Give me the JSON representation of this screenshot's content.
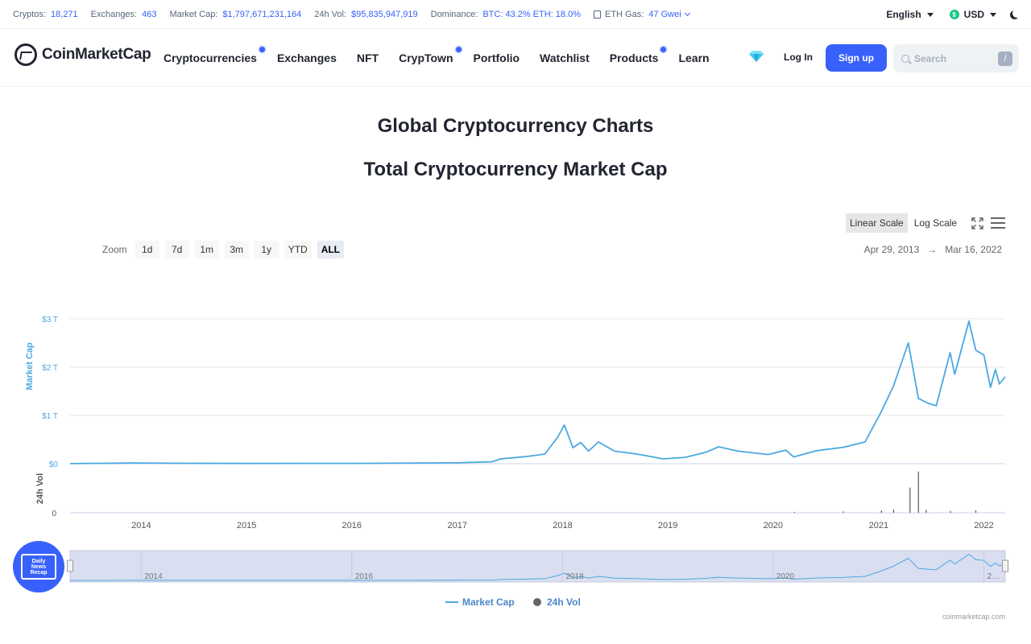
{
  "stats": {
    "cryptos_label": "Cryptos:",
    "cryptos": "18,271",
    "exchanges_label": "Exchanges:",
    "exchanges": "463",
    "marketcap_label": "Market Cap:",
    "marketcap": "$1,797,671,231,164",
    "vol_label": "24h Vol:",
    "vol": "$95,835,947,919",
    "dominance_label": "Dominance:",
    "dominance": "BTC: 43.2% ETH: 18.0%",
    "gas_label": "ETH Gas:",
    "gas": "47 Gwei",
    "language": "English",
    "currency": "USD"
  },
  "nav": {
    "logo": "CoinMarketCap",
    "items": [
      "Cryptocurrencies",
      "Exchanges",
      "NFT",
      "CrypTown",
      "Portfolio",
      "Watchlist",
      "Products",
      "Learn"
    ],
    "login": "Log In",
    "signup": "Sign up",
    "search_placeholder": "Search",
    "search_key": "/"
  },
  "page": {
    "title": "Global Cryptocurrency Charts",
    "subtitle": "Total Cryptocurrency Market Cap"
  },
  "controls": {
    "scales": [
      "Linear Scale",
      "Log Scale"
    ],
    "active_scale": "Linear Scale",
    "zoom_label": "Zoom",
    "zoom_buttons": [
      "1d",
      "7d",
      "1m",
      "3m",
      "1y",
      "YTD",
      "ALL"
    ],
    "active_zoom": "ALL",
    "range_from": "Apr 29, 2013",
    "range_arrow": "→",
    "range_to": "Mar 16, 2022"
  },
  "chart_data": {
    "type": "line",
    "ylabel": "Market Cap",
    "y2label": "24h Vol",
    "yticks": [
      "$0",
      "$1 T",
      "$2 T",
      "$3 T"
    ],
    "y2ticks": [
      "0"
    ],
    "ylim": [
      0,
      3
    ],
    "unit": "T",
    "xticks": [
      "2014",
      "2015",
      "2016",
      "2017",
      "2018",
      "2019",
      "2020",
      "2021",
      "2022"
    ],
    "navigator_ticks": [
      "2014",
      "2016",
      "2018",
      "2020",
      "2…"
    ],
    "legend": [
      "Market Cap",
      "24h Vol"
    ],
    "series": [
      {
        "name": "Market Cap",
        "color": "#4aa8e0",
        "points": [
          [
            "2013-04-29",
            0.002
          ],
          [
            "2013-12-01",
            0.013
          ],
          [
            "2014-06-01",
            0.009
          ],
          [
            "2015-01-01",
            0.005
          ],
          [
            "2016-01-01",
            0.007
          ],
          [
            "2017-01-01",
            0.018
          ],
          [
            "2017-05-01",
            0.04
          ],
          [
            "2017-06-01",
            0.1
          ],
          [
            "2017-09-01",
            0.15
          ],
          [
            "2017-11-01",
            0.2
          ],
          [
            "2017-12-15",
            0.55
          ],
          [
            "2018-01-07",
            0.8
          ],
          [
            "2018-02-06",
            0.33
          ],
          [
            "2018-03-05",
            0.44
          ],
          [
            "2018-04-01",
            0.26
          ],
          [
            "2018-05-05",
            0.45
          ],
          [
            "2018-06-30",
            0.26
          ],
          [
            "2018-09-15",
            0.2
          ],
          [
            "2018-11-20",
            0.13
          ],
          [
            "2018-12-15",
            0.1
          ],
          [
            "2019-03-01",
            0.13
          ],
          [
            "2019-05-15",
            0.24
          ],
          [
            "2019-06-26",
            0.35
          ],
          [
            "2019-09-01",
            0.26
          ],
          [
            "2019-12-15",
            0.19
          ],
          [
            "2020-02-14",
            0.28
          ],
          [
            "2020-03-12",
            0.14
          ],
          [
            "2020-06-01",
            0.27
          ],
          [
            "2020-09-01",
            0.34
          ],
          [
            "2020-11-15",
            0.45
          ],
          [
            "2021-01-08",
            1.05
          ],
          [
            "2021-02-21",
            1.6
          ],
          [
            "2021-04-14",
            2.5
          ],
          [
            "2021-05-19",
            1.35
          ],
          [
            "2021-06-22",
            1.25
          ],
          [
            "2021-07-20",
            1.2
          ],
          [
            "2021-09-06",
            2.3
          ],
          [
            "2021-09-22",
            1.85
          ],
          [
            "2021-11-10",
            2.95
          ],
          [
            "2021-12-04",
            2.35
          ],
          [
            "2022-01-01",
            2.25
          ],
          [
            "2022-01-24",
            1.58
          ],
          [
            "2022-02-10",
            1.95
          ],
          [
            "2022-02-24",
            1.65
          ],
          [
            "2022-03-16",
            1.8
          ]
        ]
      },
      {
        "name": "24h Vol",
        "color": "#555555",
        "bars": [
          [
            "2020-03-15",
            0.02
          ],
          [
            "2020-09-01",
            0.03
          ],
          [
            "2021-01-11",
            0.05
          ],
          [
            "2021-02-22",
            0.07
          ],
          [
            "2021-04-20",
            0.55
          ],
          [
            "2021-05-19",
            0.9
          ],
          [
            "2021-06-15",
            0.06
          ],
          [
            "2021-09-07",
            0.04
          ],
          [
            "2021-12-04",
            0.05
          ]
        ]
      }
    ]
  },
  "floating": {
    "badge_line1": "Daily",
    "badge_line2": "News",
    "badge_line3": "Recap"
  },
  "credit": "coinmarketcap.com"
}
